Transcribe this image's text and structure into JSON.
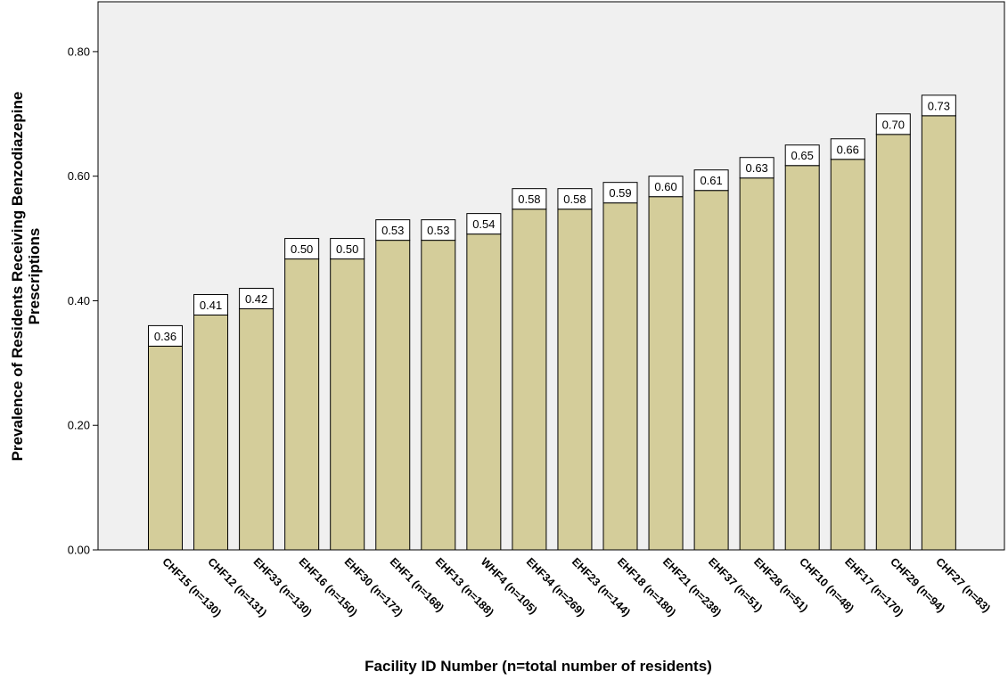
{
  "chart_data": {
    "type": "bar",
    "title": "",
    "xlabel": "Facility ID Number (n=total number of residents)",
    "ylabel_lines": [
      "Prevalence of Residents Receiving Benzodiazepine",
      "Prescriptions"
    ],
    "ylim": [
      0,
      0.88
    ],
    "yticks": [
      0.0,
      0.2,
      0.4,
      0.6,
      0.8
    ],
    "ytick_labels": [
      "0.00",
      "0.20",
      "0.40",
      "0.60",
      "0.80"
    ],
    "grid": false,
    "categories": [
      "CHF15 (n=130)",
      "CHF12 (n=131)",
      "EHF33 (n=130)",
      "EHF16 (n=150)",
      "EHF30 (n=172)",
      "EHF1 (n=168)",
      "EHF13 (n=188)",
      "WHF4 (n=105)",
      "EHF34 (n=269)",
      "EHF23 (n=144)",
      "EHF18 (n=180)",
      "EHF21 (n=238)",
      "EHF37 (n=51)",
      "EHF28 (n=51)",
      "CHF10 (n=48)",
      "EHF17 (n=170)",
      "CHF29 (n=94)",
      "CHF27 (n=83)"
    ],
    "values": [
      0.36,
      0.41,
      0.42,
      0.5,
      0.5,
      0.53,
      0.53,
      0.54,
      0.58,
      0.58,
      0.59,
      0.6,
      0.61,
      0.63,
      0.65,
      0.66,
      0.7,
      0.73
    ],
    "value_labels": [
      "0.36",
      "0.41",
      "0.42",
      "0.50",
      "0.50",
      "0.53",
      "0.53",
      "0.54",
      "0.58",
      "0.58",
      "0.59",
      "0.60",
      "0.61",
      "0.63",
      "0.65",
      "0.66",
      "0.70",
      "0.73"
    ],
    "colors": {
      "bar": "#d4cd9a",
      "plot_bg": "#f0f0f0",
      "frame": "#000000"
    }
  }
}
